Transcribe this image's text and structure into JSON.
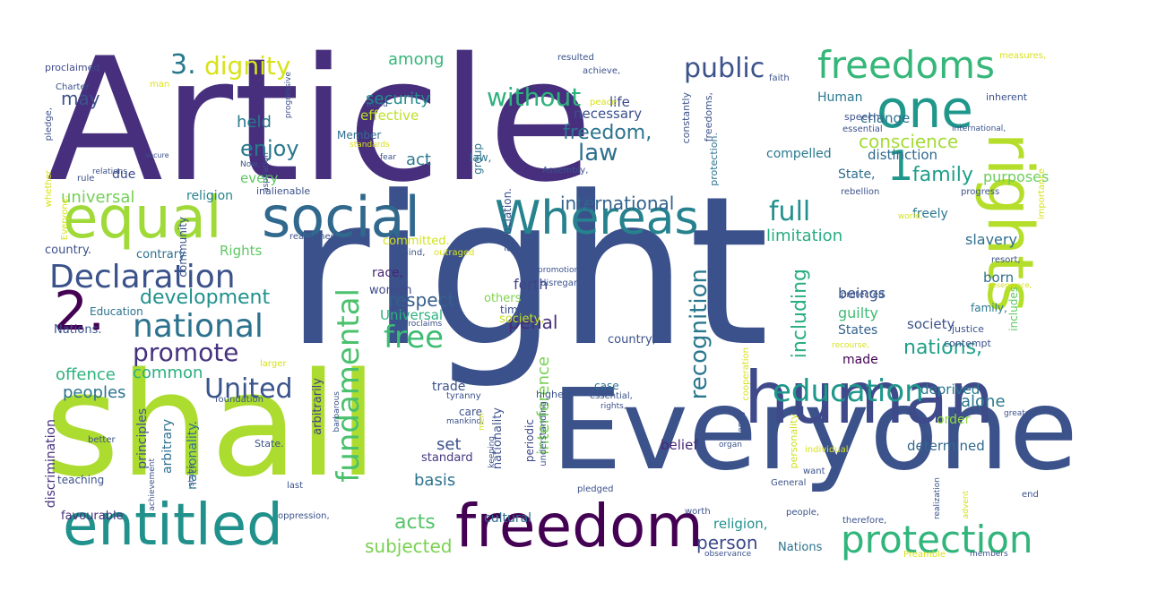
{
  "word_cloud": {
    "words": [
      {
        "text": "Article",
        "color": "#472f7d"
      },
      {
        "text": "right",
        "color": "#3b518b"
      },
      {
        "text": "shall",
        "color": "#addc30"
      },
      {
        "text": "Everyone",
        "color": "#3b528b"
      },
      {
        "text": "human",
        "color": "#3e4a89"
      },
      {
        "text": "rights",
        "color": "#b5de2b"
      },
      {
        "text": "freedom",
        "color": "#440154"
      },
      {
        "text": "entitled",
        "color": "#21918c"
      },
      {
        "text": "equal",
        "color": "#a0da39"
      },
      {
        "text": "social",
        "color": "#31688e"
      },
      {
        "text": "Whereas",
        "color": "#26828e"
      },
      {
        "text": "one",
        "color": "#1f978b"
      },
      {
        "text": "freedoms",
        "color": "#35b779"
      },
      {
        "text": "protection",
        "color": "#31b57b"
      },
      {
        "text": "2.",
        "color": "#440154"
      },
      {
        "text": "Declaration",
        "color": "#3b528b"
      },
      {
        "text": "national",
        "color": "#2c728e"
      },
      {
        "text": "education",
        "color": "#1f988b"
      },
      {
        "text": "fundamental",
        "color": "#4ac16d"
      },
      {
        "text": "free",
        "color": "#3dbc74"
      },
      {
        "text": "without",
        "color": "#2db27d"
      },
      {
        "text": "public",
        "color": "#3b528b"
      },
      {
        "text": "dignity",
        "color": "#d8e219"
      },
      {
        "text": "3.",
        "color": "#29798e"
      },
      {
        "text": "United",
        "color": "#3a548c"
      },
      {
        "text": "promote",
        "color": "#46327e"
      },
      {
        "text": "1",
        "color": "#1f988b"
      },
      {
        "text": "recognition",
        "color": "#2a788e"
      },
      {
        "text": "full",
        "color": "#21918c"
      },
      {
        "text": "enjoy",
        "color": "#2a788e"
      },
      {
        "text": "development",
        "color": "#21918c"
      },
      {
        "text": "international",
        "color": "#33638d"
      },
      {
        "text": "law",
        "color": "#2e6f8e"
      },
      {
        "text": "freedom,",
        "color": "#2c738e"
      },
      {
        "text": "conscience",
        "color": "#a5db36"
      },
      {
        "text": "family",
        "color": "#1f9e89"
      },
      {
        "text": "nations,",
        "color": "#1fa088"
      },
      {
        "text": "including",
        "color": "#29af7f"
      },
      {
        "text": "among",
        "color": "#35b779"
      },
      {
        "text": "security",
        "color": "#228d8d"
      },
      {
        "text": "respect",
        "color": "#355f8d"
      },
      {
        "text": "person",
        "color": "#3e4989"
      },
      {
        "text": "subjected",
        "color": "#7ad151"
      },
      {
        "text": "acts",
        "color": "#54c568"
      },
      {
        "text": "penal",
        "color": "#472c7a"
      },
      {
        "text": "peoples",
        "color": "#2c738e"
      },
      {
        "text": "offence",
        "color": "#2db27d"
      },
      {
        "text": "common",
        "color": "#29af7f"
      },
      {
        "text": "may",
        "color": "#3b528b"
      },
      {
        "text": "held",
        "color": "#2a788e"
      },
      {
        "text": "act",
        "color": "#2a788e"
      },
      {
        "text": "universal",
        "color": "#73d056"
      },
      {
        "text": "limitation",
        "color": "#26ad81"
      },
      {
        "text": "alone",
        "color": "#2a788e"
      },
      {
        "text": "interference",
        "color": "#77d153"
      },
      {
        "text": "basis",
        "color": "#2c728e"
      },
      {
        "text": "set",
        "color": "#3b528b"
      },
      {
        "text": "forth",
        "color": "#414487"
      },
      {
        "text": "Universal",
        "color": "#2db27d"
      },
      {
        "text": "guilty",
        "color": "#3fbc73"
      },
      {
        "text": "society",
        "color": "#3b528b"
      },
      {
        "text": "beings",
        "color": "#39558c"
      },
      {
        "text": "purposes",
        "color": "#6ccd5a"
      },
      {
        "text": "slavery",
        "color": "#2e6f8e"
      },
      {
        "text": "born",
        "color": "#2e6e8e"
      },
      {
        "text": "effective",
        "color": "#bddf26"
      },
      {
        "text": "necessary",
        "color": "#3b528b"
      },
      {
        "text": "life",
        "color": "#3e4a89"
      },
      {
        "text": "Human",
        "color": "#2a788e"
      },
      {
        "text": "change",
        "color": "#2c728e"
      },
      {
        "text": "compelled",
        "color": "#2a788e"
      },
      {
        "text": "distinction",
        "color": "#31688e"
      },
      {
        "text": "State,",
        "color": "#2e6e8e"
      },
      {
        "text": "religion",
        "color": "#25848e"
      },
      {
        "text": "religion,",
        "color": "#21918c"
      },
      {
        "text": "every",
        "color": "#5ec962"
      },
      {
        "text": "due",
        "color": "#3e4989"
      },
      {
        "text": "country.",
        "color": "#3b528b"
      },
      {
        "text": "contrary",
        "color": "#2d708e"
      },
      {
        "text": "Rights",
        "color": "#5ec962"
      },
      {
        "text": "race,",
        "color": "#482475"
      },
      {
        "text": "women",
        "color": "#3e4a89"
      },
      {
        "text": "deprived",
        "color": "#2a788e"
      },
      {
        "text": "order",
        "color": "#8fd744"
      },
      {
        "text": "determined",
        "color": "#31688e"
      },
      {
        "text": "States",
        "color": "#33638d"
      },
      {
        "text": "made",
        "color": "#440154"
      },
      {
        "text": "principles",
        "color": "#3b528b"
      },
      {
        "text": "arbitrary",
        "color": "#2d708e"
      },
      {
        "text": "nationality.",
        "color": "#2c728e"
      },
      {
        "text": "arbitrarily",
        "color": "#433e85"
      },
      {
        "text": "nationality",
        "color": "#3b528b"
      },
      {
        "text": "discrimination",
        "color": "#46327e"
      },
      {
        "text": "favourable",
        "color": "#472f7d"
      },
      {
        "text": "cultural",
        "color": "#2e6e8e"
      },
      {
        "text": "standard",
        "color": "#453781"
      },
      {
        "text": "trade",
        "color": "#3b528b"
      },
      {
        "text": "belief",
        "color": "#482878"
      },
      {
        "text": "community",
        "color": "#3b528b"
      },
      {
        "text": "association.",
        "color": "#3b528b"
      },
      {
        "text": "group",
        "color": "#2c728e"
      },
      {
        "text": "freely",
        "color": "#2a788e"
      },
      {
        "text": "society,",
        "color": "#c2df23"
      },
      {
        "text": "Member",
        "color": "#2e6e8e"
      },
      {
        "text": "committed.",
        "color": "#d2e21b"
      },
      {
        "text": "Nations.",
        "color": "#3b528b"
      },
      {
        "text": "Nations",
        "color": "#2c728e"
      },
      {
        "text": "others",
        "color": "#7fd34e"
      },
      {
        "text": "country,",
        "color": "#3b528b"
      },
      {
        "text": "family,",
        "color": "#2a788e"
      },
      {
        "text": "Education",
        "color": "#2c728e"
      },
      {
        "text": "teaching",
        "color": "#3b528b"
      },
      {
        "text": "time",
        "color": "#3b528b"
      },
      {
        "text": "care",
        "color": "#3b528b"
      },
      {
        "text": "periodic",
        "color": "#3e4989"
      },
      {
        "text": "case",
        "color": "#2c728e"
      },
      {
        "text": "law,",
        "color": "#2c728e"
      },
      {
        "text": "protection.",
        "color": "#2c728e"
      },
      {
        "text": "constantly",
        "color": "#3b528b"
      },
      {
        "text": "freedoms,",
        "color": "#3b528b"
      },
      {
        "text": "includes",
        "color": "#5ec962"
      },
      {
        "text": "personality",
        "color": "#d0e11c"
      },
      {
        "text": "highest",
        "color": "#3b528b"
      },
      {
        "text": "justice",
        "color": "#3b528b"
      },
      {
        "text": "contempt",
        "color": "#3b528b"
      },
      {
        "text": "proclaimed",
        "color": "#3e4a89"
      },
      {
        "text": "Charter",
        "color": "#3b528b"
      },
      {
        "text": "man",
        "color": "#d8e219"
      },
      {
        "text": "peace",
        "color": "#d8e219"
      },
      {
        "text": "resulted",
        "color": "#3b528b"
      },
      {
        "text": "achieve,",
        "color": "#3b528b"
      },
      {
        "text": "faith",
        "color": "#3b528b"
      },
      {
        "text": "measures,",
        "color": "#d8e219"
      },
      {
        "text": "inherent",
        "color": "#3b528b"
      },
      {
        "text": "speech",
        "color": "#3b528b"
      },
      {
        "text": "essential",
        "color": "#3b528b"
      },
      {
        "text": "importance",
        "color": "#d8e219"
      },
      {
        "text": "international,",
        "color": "#3b528b"
      },
      {
        "text": "pledge,",
        "color": "#3b528b"
      },
      {
        "text": "whether",
        "color": "#d8e219"
      },
      {
        "text": "Everyone,",
        "color": "#d8e219"
      },
      {
        "text": "progressive",
        "color": "#3b528b"
      },
      {
        "text": "world",
        "color": "#3b528b"
      },
      {
        "text": "standards",
        "color": "#d8e219"
      },
      {
        "text": "aspiration",
        "color": "#3b528b"
      },
      {
        "text": "Now,",
        "color": "#3b528b"
      },
      {
        "text": "fear",
        "color": "#3b528b"
      },
      {
        "text": "Assembly,",
        "color": "#3b528b"
      },
      {
        "text": "secure",
        "color": "#3b528b"
      },
      {
        "text": "rule",
        "color": "#3b528b"
      },
      {
        "text": "relations",
        "color": "#3b528b"
      },
      {
        "text": "inalienable",
        "color": "#3b528b"
      },
      {
        "text": "progress",
        "color": "#3b528b"
      },
      {
        "text": "rebellion",
        "color": "#3b528b"
      },
      {
        "text": "world,",
        "color": "#d8e219"
      },
      {
        "text": "reaffirmed",
        "color": "#3b528b"
      },
      {
        "text": "mind,",
        "color": "#3b528b"
      },
      {
        "text": "outraged",
        "color": "#d8e219"
      },
      {
        "text": "resort,",
        "color": "#3b528b"
      },
      {
        "text": "promotion",
        "color": "#3b528b"
      },
      {
        "text": "disregard",
        "color": "#3b528b"
      },
      {
        "text": "protected",
        "color": "#3b528b"
      },
      {
        "text": "observance,",
        "color": "#d8e219"
      },
      {
        "text": "recourse,",
        "color": "#d8e219"
      },
      {
        "text": "cooperation",
        "color": "#d8e219"
      },
      {
        "text": "larger",
        "color": "#d8e219"
      },
      {
        "text": "Proclaims",
        "color": "#3b528b"
      },
      {
        "text": "barbarous",
        "color": "#3b528b"
      },
      {
        "text": "understanding",
        "color": "#3b528b"
      },
      {
        "text": "tyranny",
        "color": "#3b528b"
      },
      {
        "text": "essential,",
        "color": "#3b528b"
      },
      {
        "text": "rights,",
        "color": "#3b528b"
      },
      {
        "text": "friendly",
        "color": "#3b528b"
      },
      {
        "text": "foundation",
        "color": "#3b528b"
      },
      {
        "text": "mankind,",
        "color": "#3b528b"
      },
      {
        "text": "men",
        "color": "#d8e219"
      },
      {
        "text": "keeping",
        "color": "#3b528b"
      },
      {
        "text": "better",
        "color": "#3b528b"
      },
      {
        "text": "achievement",
        "color": "#3b528b"
      },
      {
        "text": "organ",
        "color": "#3b528b"
      },
      {
        "text": "individual",
        "color": "#d8e219"
      },
      {
        "text": "State.",
        "color": "#3b528b"
      },
      {
        "text": "want",
        "color": "#3b528b"
      },
      {
        "text": "strive",
        "color": "#3b528b"
      },
      {
        "text": "last",
        "color": "#3b528b"
      },
      {
        "text": "pledged",
        "color": "#3b528b"
      },
      {
        "text": "General",
        "color": "#3b528b"
      },
      {
        "text": "realization",
        "color": "#3b528b"
      },
      {
        "text": "advent",
        "color": "#d8e219"
      },
      {
        "text": "end",
        "color": "#3b528b"
      },
      {
        "text": "oppression,",
        "color": "#3b528b"
      },
      {
        "text": "worth",
        "color": "#3b528b"
      },
      {
        "text": "people,",
        "color": "#3b528b"
      },
      {
        "text": "therefore,",
        "color": "#3b528b"
      },
      {
        "text": "observance",
        "color": "#3b528b"
      },
      {
        "text": "Preamble",
        "color": "#d8e219"
      },
      {
        "text": "members",
        "color": "#3b528b"
      },
      {
        "text": "greatest",
        "color": "#3b528b"
      }
    ]
  }
}
